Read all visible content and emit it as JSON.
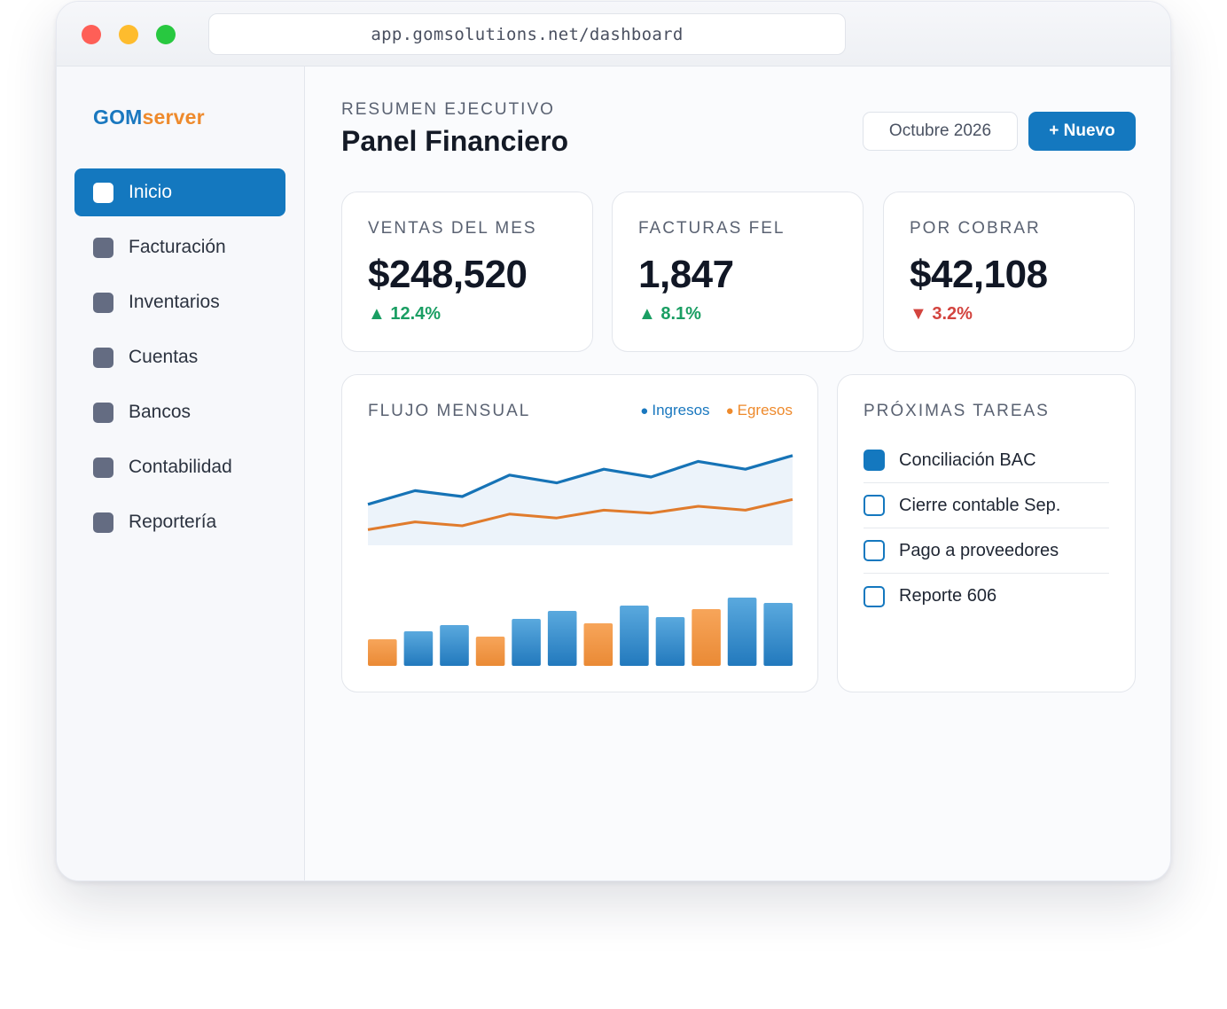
{
  "browser": {
    "url": "app.gomsolutions.net/dashboard"
  },
  "logo": {
    "part1": "GOM",
    "part2": "server"
  },
  "sidebar": {
    "items": [
      {
        "label": "Inicio",
        "active": true
      },
      {
        "label": "Facturación",
        "active": false
      },
      {
        "label": "Inventarios",
        "active": false
      },
      {
        "label": "Cuentas",
        "active": false
      },
      {
        "label": "Bancos",
        "active": false
      },
      {
        "label": "Contabilidad",
        "active": false
      },
      {
        "label": "Reportería",
        "active": false
      }
    ]
  },
  "header": {
    "eyebrow": "RESUMEN EJECUTIVO",
    "title": "Panel Financiero",
    "period": "Octubre 2026",
    "new_button": "+ Nuevo"
  },
  "kpis": [
    {
      "label": "VENTAS DEL MES",
      "value": "$248,520",
      "delta": "▲ 12.4%",
      "trend": "up"
    },
    {
      "label": "FACTURAS FEL",
      "value": "1,847",
      "delta": "▲ 8.1%",
      "trend": "up"
    },
    {
      "label": "POR COBRAR",
      "value": "$42,108",
      "delta": "▼ 3.2%",
      "trend": "down"
    }
  ],
  "flow": {
    "title": "FLUJO MENSUAL",
    "legend": {
      "income": "Ingresos",
      "expense": "Egresos"
    }
  },
  "tasks": {
    "title": "PRÓXIMAS TAREAS",
    "items": [
      {
        "label": "Conciliación BAC",
        "done": true
      },
      {
        "label": "Cierre contable Sep.",
        "done": false
      },
      {
        "label": "Pago a proveedores",
        "done": false
      },
      {
        "label": "Reporte 606",
        "done": false
      }
    ]
  },
  "colors": {
    "accent": "#1478bf",
    "income": "#1a78bf",
    "expense": "#ee8a2c",
    "up": "#1a9e63",
    "down": "#d3443f"
  },
  "chart_data": {
    "type": "line",
    "series": [
      {
        "name": "Ingresos",
        "values": [
          58,
          44,
          50,
          28,
          36,
          22,
          30,
          14,
          22,
          8
        ]
      },
      {
        "name": "Egresos",
        "values": [
          84,
          76,
          80,
          68,
          72,
          64,
          67,
          60,
          64,
          53
        ]
      }
    ],
    "bars": {
      "values": [
        30,
        39,
        46,
        33,
        53,
        62,
        48,
        68,
        55,
        64,
        77,
        71
      ],
      "kinds": [
        "expense",
        "income",
        "income",
        "expense",
        "income",
        "income",
        "expense",
        "income",
        "income",
        "expense",
        "income",
        "income"
      ]
    }
  }
}
